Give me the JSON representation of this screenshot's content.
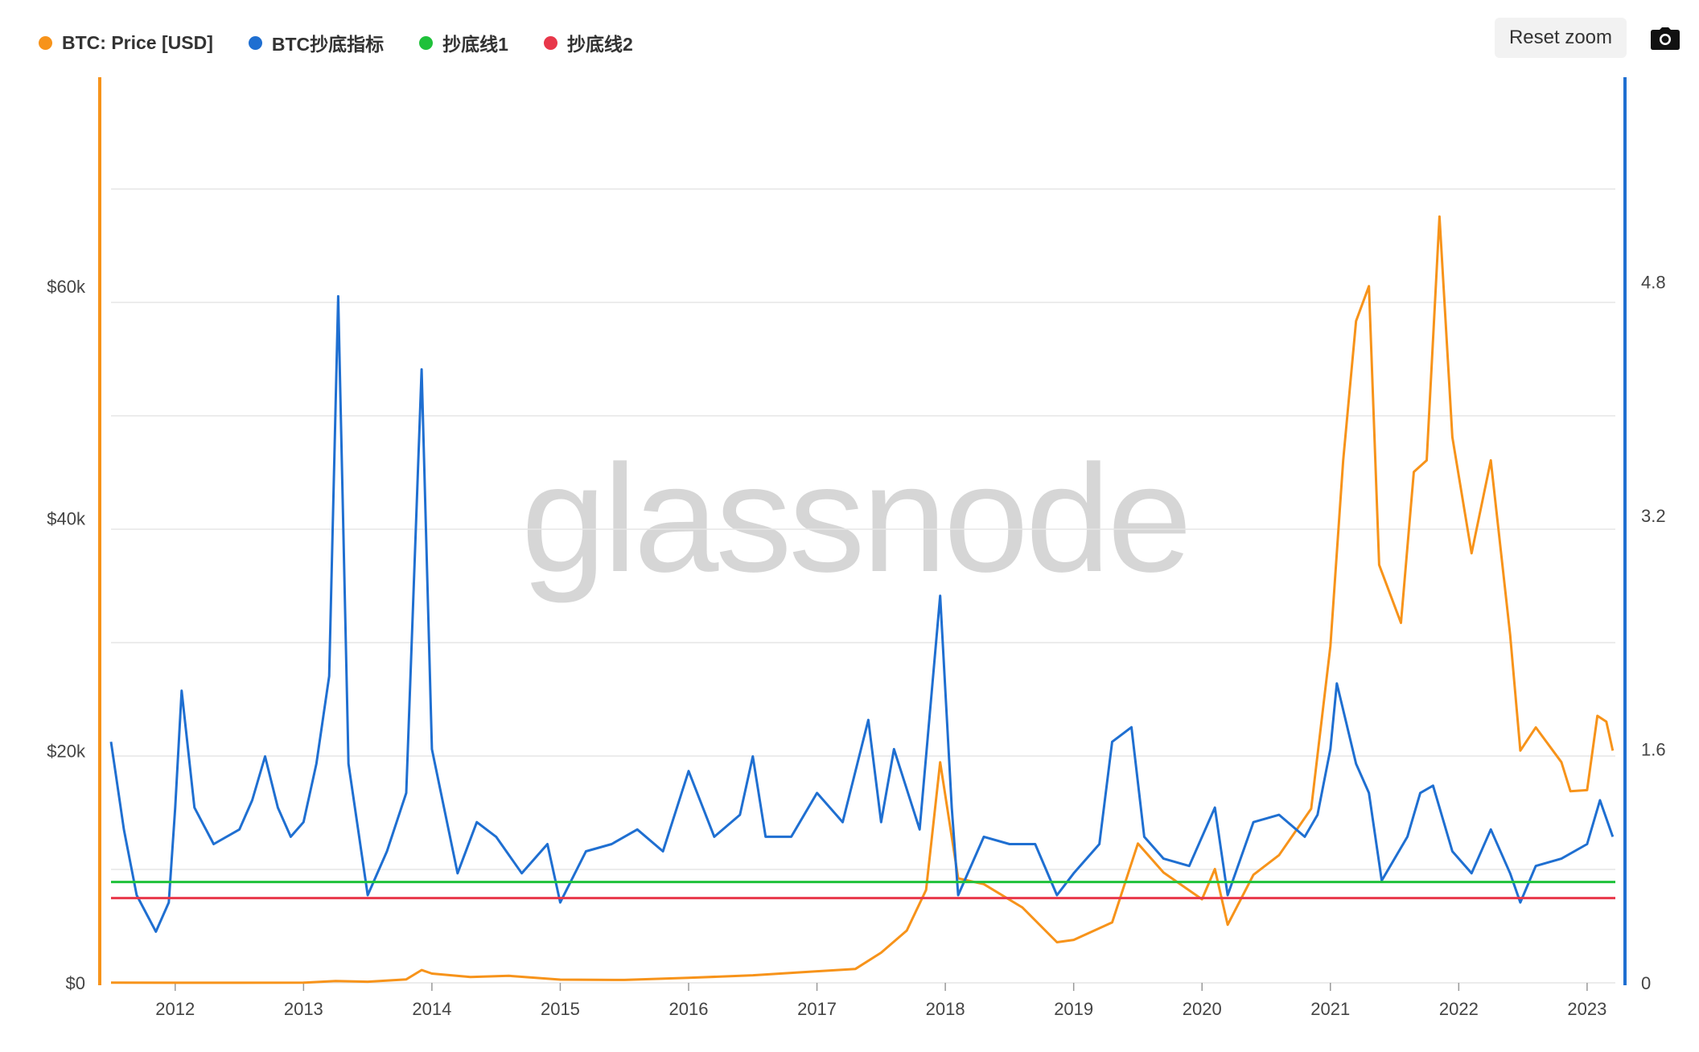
{
  "legend": [
    {
      "label": "BTC: Price [USD]",
      "color": "#f7931a"
    },
    {
      "label": "BTC抄底指标",
      "color": "#1f6fd1"
    },
    {
      "label": "抄底线1",
      "color": "#1fc13a"
    },
    {
      "label": "抄底线2",
      "color": "#e8374a"
    }
  ],
  "toolbar": {
    "reset_zoom_label": "Reset zoom",
    "camera_icon": "camera-icon"
  },
  "watermark": "glassnode",
  "chart_data": {
    "type": "line",
    "x_axis": {
      "ticks": [
        "2012",
        "2013",
        "2014",
        "2015",
        "2016",
        "2017",
        "2018",
        "2019",
        "2020",
        "2021",
        "2022",
        "2023"
      ],
      "range": [
        2011.5,
        2023.22
      ]
    },
    "y_left": {
      "ticks": [
        "$0",
        "$20k",
        "$40k",
        "$60k"
      ],
      "tick_values": [
        0,
        20000,
        40000,
        60000
      ],
      "range": [
        0,
        78000
      ],
      "color": "#f7931a"
    },
    "y_right": {
      "ticks": [
        "0",
        "1.6",
        "3.2",
        "4.8"
      ],
      "tick_values": [
        0,
        1.6,
        3.2,
        4.8
      ],
      "range": [
        0,
        6.2
      ],
      "color": "#1f6fd1"
    },
    "grid": true,
    "series": [
      {
        "name": "BTC: Price [USD]",
        "axis": "left",
        "color": "#f7931a",
        "points": [
          [
            2011.5,
            15
          ],
          [
            2012.0,
            5
          ],
          [
            2012.5,
            7
          ],
          [
            2013.0,
            13
          ],
          [
            2013.25,
            150
          ],
          [
            2013.5,
            100
          ],
          [
            2013.8,
            300
          ],
          [
            2013.92,
            1100
          ],
          [
            2014.0,
            800
          ],
          [
            2014.3,
            500
          ],
          [
            2014.6,
            600
          ],
          [
            2015.0,
            280
          ],
          [
            2015.5,
            250
          ],
          [
            2016.0,
            430
          ],
          [
            2016.5,
            650
          ],
          [
            2017.0,
            1000
          ],
          [
            2017.3,
            1200
          ],
          [
            2017.5,
            2600
          ],
          [
            2017.7,
            4500
          ],
          [
            2017.85,
            8000
          ],
          [
            2017.96,
            19000
          ],
          [
            2018.1,
            9000
          ],
          [
            2018.3,
            8500
          ],
          [
            2018.6,
            6500
          ],
          [
            2018.87,
            3500
          ],
          [
            2019.0,
            3700
          ],
          [
            2019.3,
            5200
          ],
          [
            2019.5,
            12000
          ],
          [
            2019.7,
            9500
          ],
          [
            2020.0,
            7200
          ],
          [
            2020.1,
            9800
          ],
          [
            2020.2,
            5000
          ],
          [
            2020.4,
            9300
          ],
          [
            2020.6,
            11000
          ],
          [
            2020.85,
            15000
          ],
          [
            2021.0,
            29000
          ],
          [
            2021.1,
            45000
          ],
          [
            2021.2,
            57000
          ],
          [
            2021.3,
            60000
          ],
          [
            2021.38,
            36000
          ],
          [
            2021.55,
            31000
          ],
          [
            2021.65,
            44000
          ],
          [
            2021.75,
            45000
          ],
          [
            2021.85,
            66000
          ],
          [
            2021.95,
            47000
          ],
          [
            2022.1,
            37000
          ],
          [
            2022.25,
            45000
          ],
          [
            2022.4,
            30000
          ],
          [
            2022.48,
            20000
          ],
          [
            2022.6,
            22000
          ],
          [
            2022.8,
            19000
          ],
          [
            2022.87,
            16500
          ],
          [
            2023.0,
            16600
          ],
          [
            2023.08,
            23000
          ],
          [
            2023.15,
            22500
          ],
          [
            2023.2,
            20000
          ]
        ]
      },
      {
        "name": "BTC抄底指标",
        "axis": "right",
        "color": "#1f6fd1",
        "points": [
          [
            2011.5,
            1.65
          ],
          [
            2011.6,
            1.05
          ],
          [
            2011.7,
            0.6
          ],
          [
            2011.85,
            0.35
          ],
          [
            2011.95,
            0.55
          ],
          [
            2012.0,
            1.2
          ],
          [
            2012.05,
            2.0
          ],
          [
            2012.15,
            1.2
          ],
          [
            2012.3,
            0.95
          ],
          [
            2012.5,
            1.05
          ],
          [
            2012.6,
            1.25
          ],
          [
            2012.7,
            1.55
          ],
          [
            2012.8,
            1.2
          ],
          [
            2012.9,
            1.0
          ],
          [
            2013.0,
            1.1
          ],
          [
            2013.1,
            1.5
          ],
          [
            2013.2,
            2.1
          ],
          [
            2013.27,
            4.7
          ],
          [
            2013.35,
            1.5
          ],
          [
            2013.5,
            0.6
          ],
          [
            2013.65,
            0.9
          ],
          [
            2013.8,
            1.3
          ],
          [
            2013.92,
            4.2
          ],
          [
            2014.0,
            1.6
          ],
          [
            2014.2,
            0.75
          ],
          [
            2014.35,
            1.1
          ],
          [
            2014.5,
            1.0
          ],
          [
            2014.7,
            0.75
          ],
          [
            2014.9,
            0.95
          ],
          [
            2015.0,
            0.55
          ],
          [
            2015.2,
            0.9
          ],
          [
            2015.4,
            0.95
          ],
          [
            2015.6,
            1.05
          ],
          [
            2015.8,
            0.9
          ],
          [
            2016.0,
            1.45
          ],
          [
            2016.2,
            1.0
          ],
          [
            2016.4,
            1.15
          ],
          [
            2016.5,
            1.55
          ],
          [
            2016.6,
            1.0
          ],
          [
            2016.8,
            1.0
          ],
          [
            2017.0,
            1.3
          ],
          [
            2017.2,
            1.1
          ],
          [
            2017.4,
            1.8
          ],
          [
            2017.5,
            1.1
          ],
          [
            2017.6,
            1.6
          ],
          [
            2017.8,
            1.05
          ],
          [
            2017.96,
            2.65
          ],
          [
            2018.05,
            1.2
          ],
          [
            2018.1,
            0.6
          ],
          [
            2018.3,
            1.0
          ],
          [
            2018.5,
            0.95
          ],
          [
            2018.7,
            0.95
          ],
          [
            2018.87,
            0.6
          ],
          [
            2019.0,
            0.75
          ],
          [
            2019.2,
            0.95
          ],
          [
            2019.3,
            1.65
          ],
          [
            2019.45,
            1.75
          ],
          [
            2019.55,
            1.0
          ],
          [
            2019.7,
            0.85
          ],
          [
            2019.9,
            0.8
          ],
          [
            2020.1,
            1.2
          ],
          [
            2020.2,
            0.6
          ],
          [
            2020.4,
            1.1
          ],
          [
            2020.6,
            1.15
          ],
          [
            2020.8,
            1.0
          ],
          [
            2020.9,
            1.15
          ],
          [
            2021.0,
            1.6
          ],
          [
            2021.05,
            2.05
          ],
          [
            2021.2,
            1.5
          ],
          [
            2021.3,
            1.3
          ],
          [
            2021.4,
            0.7
          ],
          [
            2021.6,
            1.0
          ],
          [
            2021.7,
            1.3
          ],
          [
            2021.8,
            1.35
          ],
          [
            2021.95,
            0.9
          ],
          [
            2022.1,
            0.75
          ],
          [
            2022.25,
            1.05
          ],
          [
            2022.4,
            0.75
          ],
          [
            2022.48,
            0.55
          ],
          [
            2022.6,
            0.8
          ],
          [
            2022.8,
            0.85
          ],
          [
            2023.0,
            0.95
          ],
          [
            2023.1,
            1.25
          ],
          [
            2023.2,
            1.0
          ]
        ]
      },
      {
        "name": "抄底线1",
        "axis": "right",
        "color": "#1fc13a",
        "constant": 0.69
      },
      {
        "name": "抄底线2",
        "axis": "right",
        "color": "#e8374a",
        "constant": 0.58
      }
    ]
  }
}
